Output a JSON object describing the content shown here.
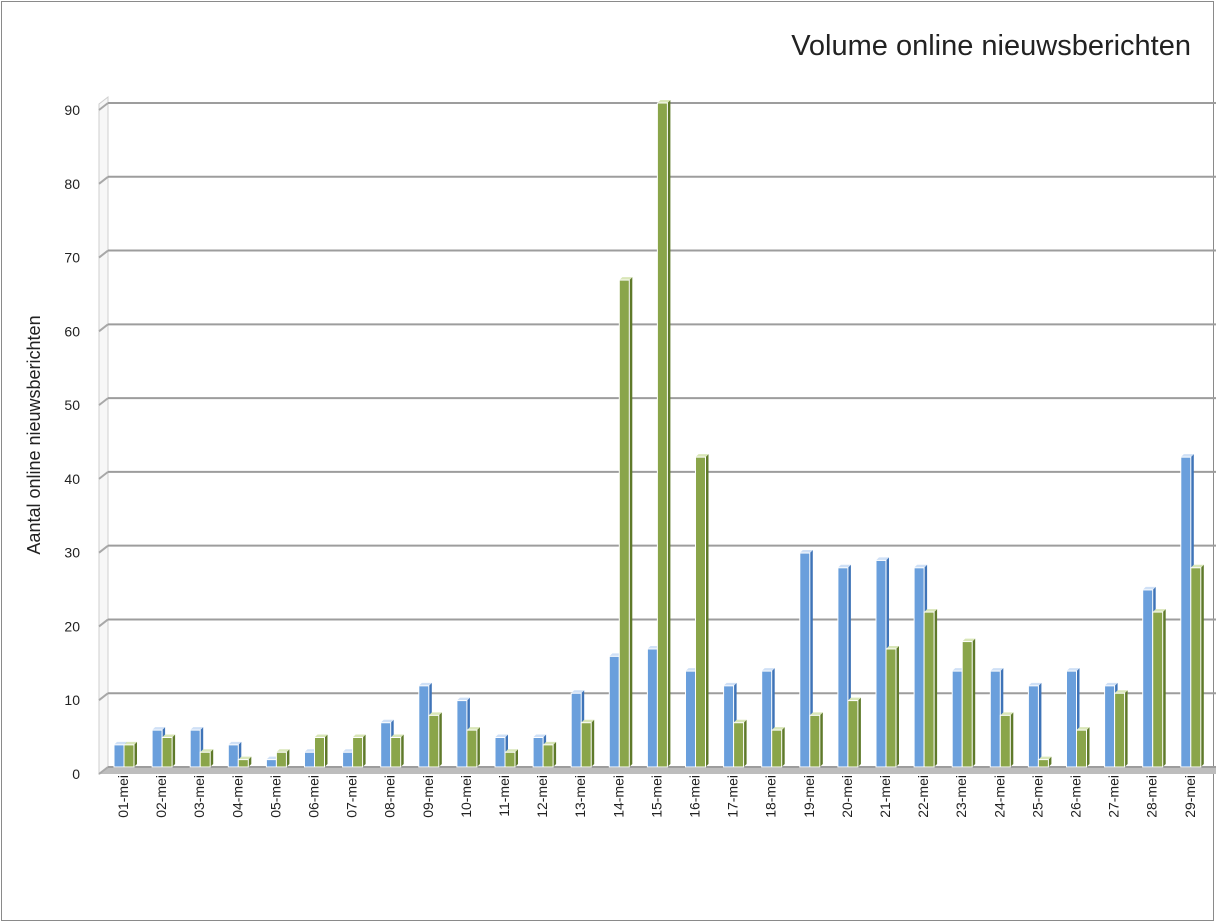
{
  "chart_data": {
    "type": "bar",
    "title": "Volume online nieuwsberichten",
    "xlabel": "",
    "ylabel": "Aantal online nieuwsberichten",
    "ylim": [
      0,
      90
    ],
    "yticks": [
      0,
      10,
      20,
      30,
      40,
      50,
      60,
      70,
      80,
      90
    ],
    "grid": true,
    "categories": [
      "01-mei",
      "02-mei",
      "03-mei",
      "04-mei",
      "05-mei",
      "06-mei",
      "07-mei",
      "08-mei",
      "09-mei",
      "10-mei",
      "11-mei",
      "12-mei",
      "13-mei",
      "14-mei",
      "15-mei",
      "16-mei",
      "17-mei",
      "18-mei",
      "19-mei",
      "20-mei",
      "21-mei",
      "22-mei",
      "23-mei",
      "24-mei",
      "25-mei",
      "26-mei",
      "27-mei",
      "28-mei",
      "29-mei"
    ],
    "series": [
      {
        "color": "#6a9fdc",
        "values": [
          3,
          5,
          5,
          3,
          1,
          2,
          2,
          6,
          11,
          9,
          4,
          4,
          10,
          15,
          16,
          13,
          11,
          13,
          29,
          27,
          28,
          27,
          13,
          13,
          11,
          13,
          11,
          24,
          42
        ]
      },
      {
        "color": "#8aa54a",
        "values": [
          3,
          4,
          2,
          1,
          2,
          4,
          4,
          4,
          7,
          5,
          2,
          3,
          6,
          66,
          90,
          42,
          6,
          5,
          7,
          9,
          16,
          21,
          17,
          7,
          1,
          5,
          10,
          21,
          27
        ]
      }
    ]
  }
}
